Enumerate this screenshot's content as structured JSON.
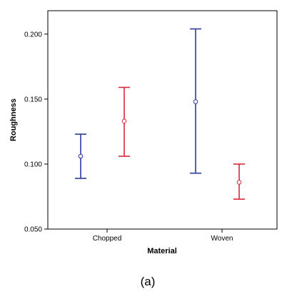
{
  "chart_data": {
    "type": "errorbar",
    "title": "",
    "xlabel": "Material",
    "ylabel": "Roughness",
    "ylim": [
      0.05,
      0.218
    ],
    "yticks": [
      "0.050",
      "0.100",
      "0.150",
      "0.200"
    ],
    "ytick_values": [
      0.05,
      0.1,
      0.15,
      0.2
    ],
    "categories": [
      "Chopped",
      "Woven"
    ],
    "grid": false,
    "legend": "none",
    "series": [
      {
        "color": "#2b3a9c",
        "points": [
          {
            "category": "Chopped",
            "mean": 0.106,
            "lower": 0.089,
            "upper": 0.123
          },
          {
            "category": "Woven",
            "mean": 0.148,
            "lower": 0.093,
            "upper": 0.204
          }
        ]
      },
      {
        "color": "#d9293a",
        "points": [
          {
            "category": "Chopped",
            "mean": 0.133,
            "lower": 0.106,
            "upper": 0.159
          },
          {
            "category": "Woven",
            "mean": 0.086,
            "lower": 0.073,
            "upper": 0.1
          }
        ]
      }
    ]
  },
  "caption": "(a)"
}
